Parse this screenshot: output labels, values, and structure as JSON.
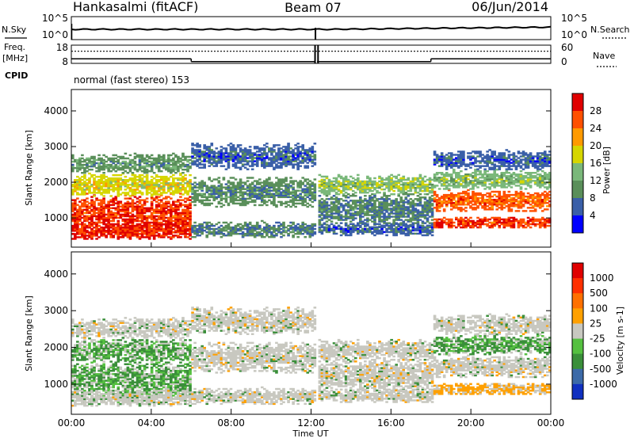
{
  "header": {
    "station": "Hankasalmi (fitACF)",
    "beam": "Beam 07",
    "date": "06/Jun/2014"
  },
  "side_labels": {
    "nsky": "N.Sky",
    "freq_line1": "Freq.",
    "freq_line2": "[MHz]",
    "cpid": "CPID",
    "nsearch": "N.Search",
    "nave": "Nave"
  },
  "cpid_text": "normal (fast stereo) 153",
  "chart_data": [
    {
      "type": "line",
      "name": "noise",
      "left_ticks": [
        "10^5",
        "10^0"
      ],
      "right_ticks": [
        "10^5",
        "10^0"
      ],
      "series": [
        {
          "label": "N.Sky",
          "level": "near 10^0 (low, steady), gap near 12:15 UT"
        },
        {
          "label": "N.Search",
          "level": "near 10^0"
        }
      ]
    },
    {
      "type": "line",
      "name": "frequency-nave",
      "left_ticks": [
        "18",
        "8"
      ],
      "right_ticks": [
        "60",
        "0"
      ],
      "series": [
        {
          "label": "Freq. [MHz]",
          "segments": [
            {
              "x": [
                0,
                6
              ],
              "value": 10.5
            },
            {
              "x": [
                6,
                12.2
              ],
              "value": 9
            },
            {
              "x": [
                12.3,
                18
              ],
              "value": 9
            },
            {
              "x": [
                18,
                24
              ],
              "value": 10.5
            }
          ]
        },
        {
          "label": "Nave",
          "value": 40
        }
      ]
    },
    {
      "type": "heatmap",
      "name": "power",
      "ylabel": "Slant Range [km]",
      "yticks": [
        1000,
        2000,
        3000,
        4000
      ],
      "ylim": [
        180,
        4600
      ],
      "xlim": [
        0,
        24
      ],
      "colorbar": {
        "label": "Power [dB]",
        "ticks": [
          "28",
          "24",
          "20",
          "16",
          "12",
          "8",
          "4"
        ],
        "range": [
          0,
          30
        ],
        "colors": [
          "#0000ff",
          "#3a5fa8",
          "#5a8f5a",
          "#7ab87a",
          "#d6d600",
          "#ff9a00",
          "#ff5000",
          "#e00000"
        ]
      }
    },
    {
      "type": "heatmap",
      "name": "velocity",
      "ylabel": "Slant Range [km]",
      "xlabel": "Time UT",
      "yticks": [
        1000,
        2000,
        3000,
        4000
      ],
      "ylim": [
        180,
        4600
      ],
      "xticks": [
        "00:00",
        "04:00",
        "08:00",
        "12:00",
        "16:00",
        "20:00",
        "00:00"
      ],
      "xlim": [
        0,
        24
      ],
      "colorbar": {
        "label": "Velocity [m s-1]",
        "ticks": [
          "1000",
          "500",
          "100",
          "25",
          "-25",
          "-100",
          "-500",
          "-1000"
        ],
        "colors": [
          "#1030c0",
          "#3c6aa8",
          "#3a8f3a",
          "#55c040",
          "#c8c8c0",
          "#ffa000",
          "#ff7000",
          "#ff3000",
          "#e00000"
        ]
      }
    }
  ],
  "colors": {
    "ground_scatter": "#c8c8c0"
  }
}
